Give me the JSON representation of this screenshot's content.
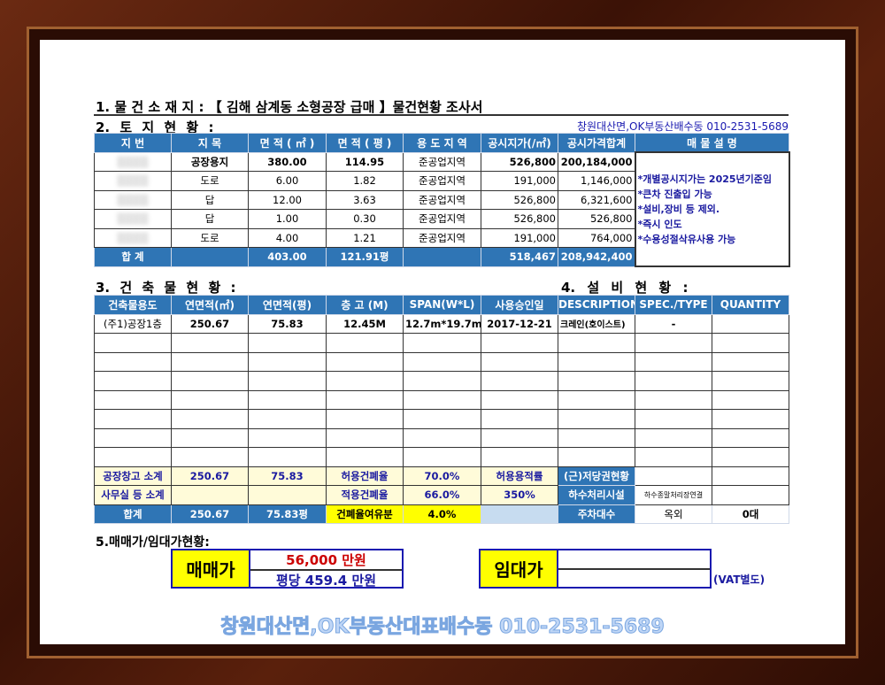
{
  "title": "1. 물 건 소 재 지 : 【 김해 삼계동 소형공장 급매 】물건현황 조사서",
  "land": {
    "heading": "2. 토 지 현 황 :",
    "contact": "창원대산면,OK부동산배수동 010-2531-5689",
    "headers": [
      "지   번",
      "지   목",
      "면 적 ( ㎡ )",
      "면 적 ( 평 )",
      "용 도 지 역",
      "공시지가(/㎡)",
      "공시가격합계",
      "매   물   설   명"
    ],
    "rows": [
      {
        "type": "공장용지",
        "area_m2": "380.00",
        "area_py": "114.95",
        "zone": "준공업지역",
        "price": "526,800",
        "total": "200,184,000"
      },
      {
        "type": "도로",
        "area_m2": "6.00",
        "area_py": "1.82",
        "zone": "준공업지역",
        "price": "191,000",
        "total": "1,146,000"
      },
      {
        "type": "답",
        "area_m2": "12.00",
        "area_py": "3.63",
        "zone": "준공업지역",
        "price": "526,800",
        "total": "6,321,600"
      },
      {
        "type": "답",
        "area_m2": "1.00",
        "area_py": "0.30",
        "zone": "준공업지역",
        "price": "526,800",
        "total": "526,800"
      },
      {
        "type": "도로",
        "area_m2": "4.00",
        "area_py": "1.21",
        "zone": "준공업지역",
        "price": "191,000",
        "total": "764,000"
      }
    ],
    "total": {
      "label": "합   계",
      "area_m2": "403.00",
      "area_py": "121.91평",
      "price": "518,467",
      "total": "208,942,400"
    },
    "notes": [
      "*개별공시지가는 2025년기준임",
      "*큰차 진출입 가능",
      "*설비,장비 등 제외.",
      "*즉시 인도",
      "*수용성절삭유사용 가능"
    ]
  },
  "building": {
    "heading": "3. 건 축 물 현 황 :",
    "headers": [
      "건축물용도",
      "연면적(㎡)",
      "연면적(평)",
      "층 고 (M)",
      "SPAN(W*L)",
      "사용승인일"
    ],
    "row": [
      "(주1)공장1층",
      "250.67",
      "75.83",
      "12.45M",
      "12.7m*19.7m",
      "2017-12-21"
    ],
    "sub1": [
      "공장창고 소계",
      "250.67",
      "75.83",
      "허용건폐율",
      "70.0%",
      "허용용적률"
    ],
    "sub2": [
      "사무실 등 소계",
      "",
      "",
      "적용건폐율",
      "66.0%",
      "350%"
    ],
    "sum": [
      "합계",
      "250.67",
      "75.83평",
      "건폐율여유분",
      "4.0%",
      ""
    ]
  },
  "equipment": {
    "heading": "4. 설 비 현 황 :",
    "headers": [
      "DESCRIPTION",
      "SPEC./TYPE",
      "QUANTITY"
    ],
    "row": [
      "크레인(호이스트)",
      "-",
      ""
    ],
    "r1": [
      "(근)저당권현황",
      "",
      ""
    ],
    "r2": [
      "하수처리시설",
      "하수종말처리장연결",
      ""
    ],
    "r3": [
      "주차대수",
      "옥외",
      "0대"
    ]
  },
  "price": {
    "heading": "5.매매가/임대가현황:",
    "sale_label": "매매가",
    "sale_value": "56,000 만원",
    "per_py": "평당 459.4 만원",
    "rent_label": "임대가",
    "vat": "(VAT별도)"
  },
  "watermark": "창원대산면,OK부동산대표배수동 010-2531-5689",
  "colors": {
    "header_blue": "#2f75b5",
    "note_blue": "#1a1aa0",
    "sale_red": "#cc0000",
    "highlight_yellow": "#ffff00"
  }
}
